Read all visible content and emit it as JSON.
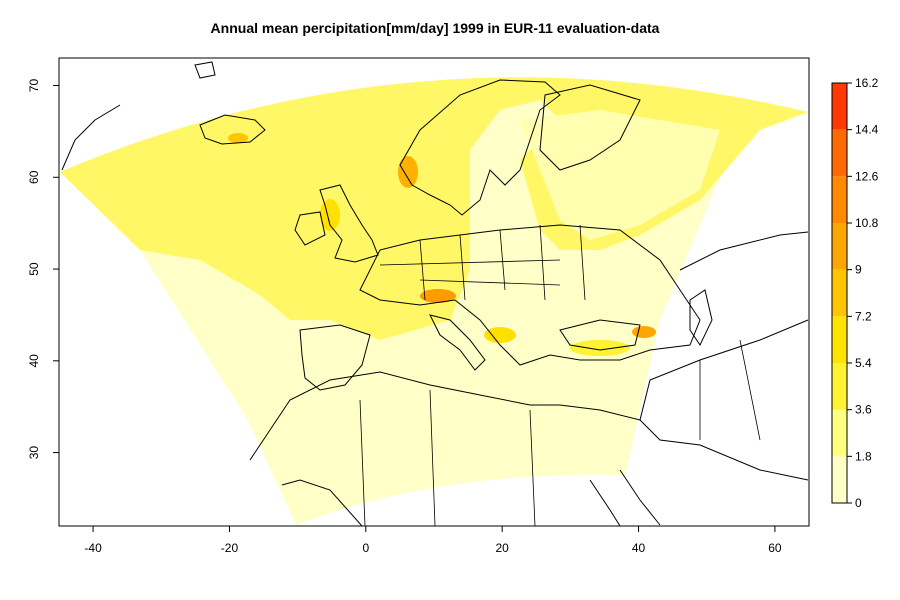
{
  "title": "Annual mean percipitation[mm/day] 1999 in EUR-11 evaluation-data",
  "x_axis": {
    "ticks": [
      "-40",
      "-20",
      "0",
      "20",
      "40",
      "60"
    ]
  },
  "y_axis": {
    "ticks": [
      "30",
      "40",
      "50",
      "60",
      "70"
    ]
  },
  "colorbar": {
    "labels": [
      "0",
      "1.8",
      "3.6",
      "5.4",
      "7.2",
      "9",
      "10.8",
      "12.6",
      "14.4",
      "16.2"
    ],
    "colors": [
      "#FFFFC8",
      "#FFFF80",
      "#FFF233",
      "#FFE400",
      "#FFC600",
      "#FFA600",
      "#FF8A00",
      "#FF6A00",
      "#FF3A00",
      "#EE0000"
    ]
  },
  "chart_data": {
    "type": "heatmap",
    "title": "Annual mean percipitation[mm/day] 1999 in EUR-11 evaluation-data",
    "xlim": [
      -45,
      65
    ],
    "ylim": [
      22,
      73
    ],
    "colorbar_range": [
      0,
      16.2
    ],
    "colorbar_breaks": [
      0,
      1.8,
      3.6,
      5.4,
      7.2,
      9,
      10.8,
      12.6,
      14.4,
      16.2
    ]
  }
}
